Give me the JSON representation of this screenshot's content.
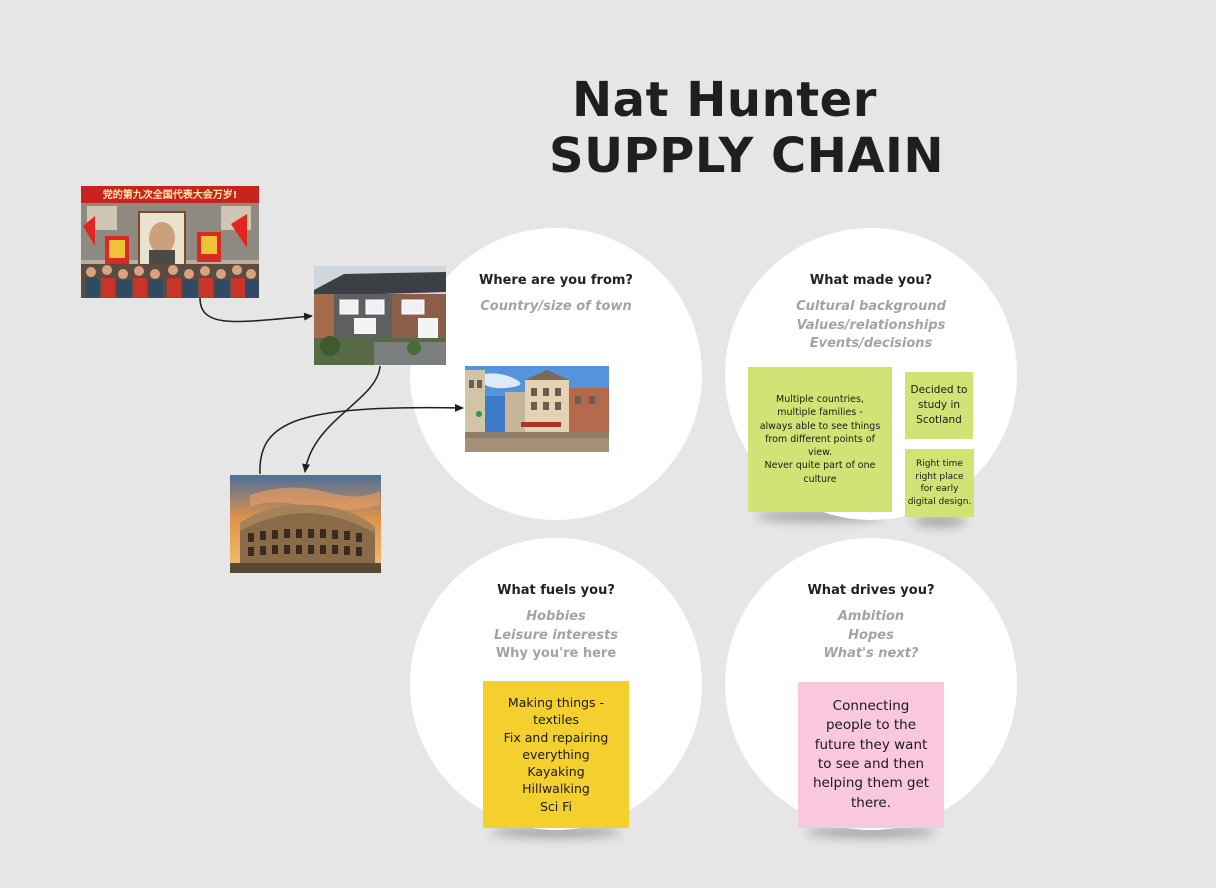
{
  "title": {
    "line1": "Nat Hunter",
    "line2": "SUPPLY CHAIN"
  },
  "quadrants": {
    "where": {
      "question": "Where are you from?",
      "prompts": [
        "Country/size of town"
      ]
    },
    "made": {
      "question": "What made you?",
      "prompts": [
        "Cultural background",
        "Values/relationships",
        "Events/decisions"
      ]
    },
    "fuels": {
      "question": "What fuels you?",
      "prompts": [
        "Hobbies",
        "Leisure interests",
        "Why you're here"
      ]
    },
    "drives": {
      "question": "What drives you?",
      "prompts": [
        "Ambition",
        "Hopes",
        "What's next?"
      ]
    }
  },
  "stickies": {
    "multiple_countries": "Multiple countries,\nmultiple families -\nalways able to see things\nfrom different points of\nview.\nNever quite part of one\nculture",
    "scotland": "Decided to\nstudy in\nScotland",
    "right_time": "Right time\nright place\nfor early\ndigital design.",
    "making_things": "Making things -\ntextiles\nFix and repairing\neverything\nKayaking\nHillwalking\nSci Fi",
    "connecting": "Connecting\npeople to the\nfuture they want\nto see and then\nhelping them get\nthere."
  },
  "images": {
    "banner_text": "党的第九次全国代表大会万岁!",
    "protest": "china-rally-photo",
    "houses": "terraced-houses-photo",
    "street": "european-street-photo",
    "colosseum": "colosseum-photo"
  },
  "colors": {
    "board": "#e6e6e6",
    "sticky_green": "#d3e274",
    "sticky_yellow": "#f4d02e",
    "sticky_pink": "#f9c8dd",
    "prompt_grey": "#a3a3a3"
  }
}
